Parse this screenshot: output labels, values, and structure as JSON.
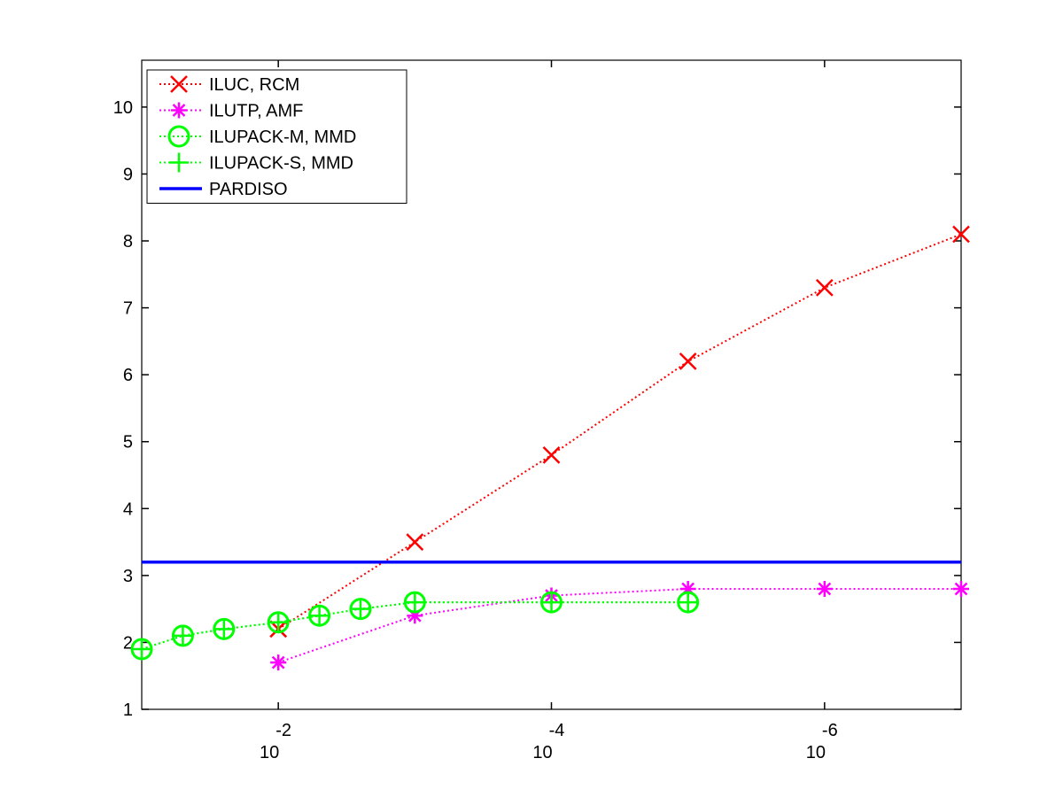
{
  "chart_data": {
    "type": "line",
    "title": "",
    "xlabel": "",
    "ylabel": "",
    "x_scale": "log",
    "x_reversed": true,
    "xlim": [
      0.1,
      1e-07
    ],
    "ylim": [
      1,
      10.7
    ],
    "grid": false,
    "legend_position": "top-left",
    "x_ticks": [
      {
        "value": 0.01,
        "base": "10",
        "exponent": "-2"
      },
      {
        "value": 0.0001,
        "base": "10",
        "exponent": "-4"
      },
      {
        "value": 1e-06,
        "base": "10",
        "exponent": "-6"
      }
    ],
    "y_ticks": [
      1,
      2,
      3,
      4,
      5,
      6,
      7,
      8,
      9,
      10
    ],
    "series": [
      {
        "name": "ILUC, RCM",
        "color": "#ff0000",
        "line_style": "dotted",
        "marker": "x",
        "x": [
          0.01,
          0.001,
          0.0001,
          1e-05,
          1e-06,
          1e-07
        ],
        "y": [
          2.2,
          3.5,
          4.8,
          6.2,
          7.3,
          8.1
        ]
      },
      {
        "name": "ILUTP, AMF",
        "color": "#ff00ff",
        "line_style": "dotted",
        "marker": "asterisk",
        "x": [
          0.01,
          0.001,
          0.0001,
          1e-05,
          1e-06,
          1e-07
        ],
        "y": [
          1.7,
          2.4,
          2.7,
          2.8,
          2.8,
          2.8
        ]
      },
      {
        "name": "ILUPACK-M, MMD",
        "color": "#00ff00",
        "line_style": "dotted",
        "marker": "circle",
        "x": [
          0.1,
          0.05,
          0.025,
          0.01,
          0.005,
          0.0025,
          0.001,
          0.0001,
          1e-05
        ],
        "y": [
          1.9,
          2.1,
          2.2,
          2.3,
          2.4,
          2.5,
          2.6,
          2.6,
          2.6
        ]
      },
      {
        "name": "ILUPACK-S, MMD",
        "color": "#00ff00",
        "line_style": "dotted",
        "marker": "plus",
        "x": [
          0.1,
          0.05,
          0.025,
          0.01,
          0.005,
          0.0025,
          0.001,
          0.0001,
          1e-05
        ],
        "y": [
          1.9,
          2.1,
          2.2,
          2.3,
          2.4,
          2.5,
          2.6,
          2.6,
          2.6
        ]
      },
      {
        "name": "PARDISO",
        "color": "#0000ff",
        "line_style": "solid",
        "marker": "none",
        "x": [
          0.1,
          1e-07
        ],
        "y": [
          3.2,
          3.2
        ]
      }
    ]
  }
}
